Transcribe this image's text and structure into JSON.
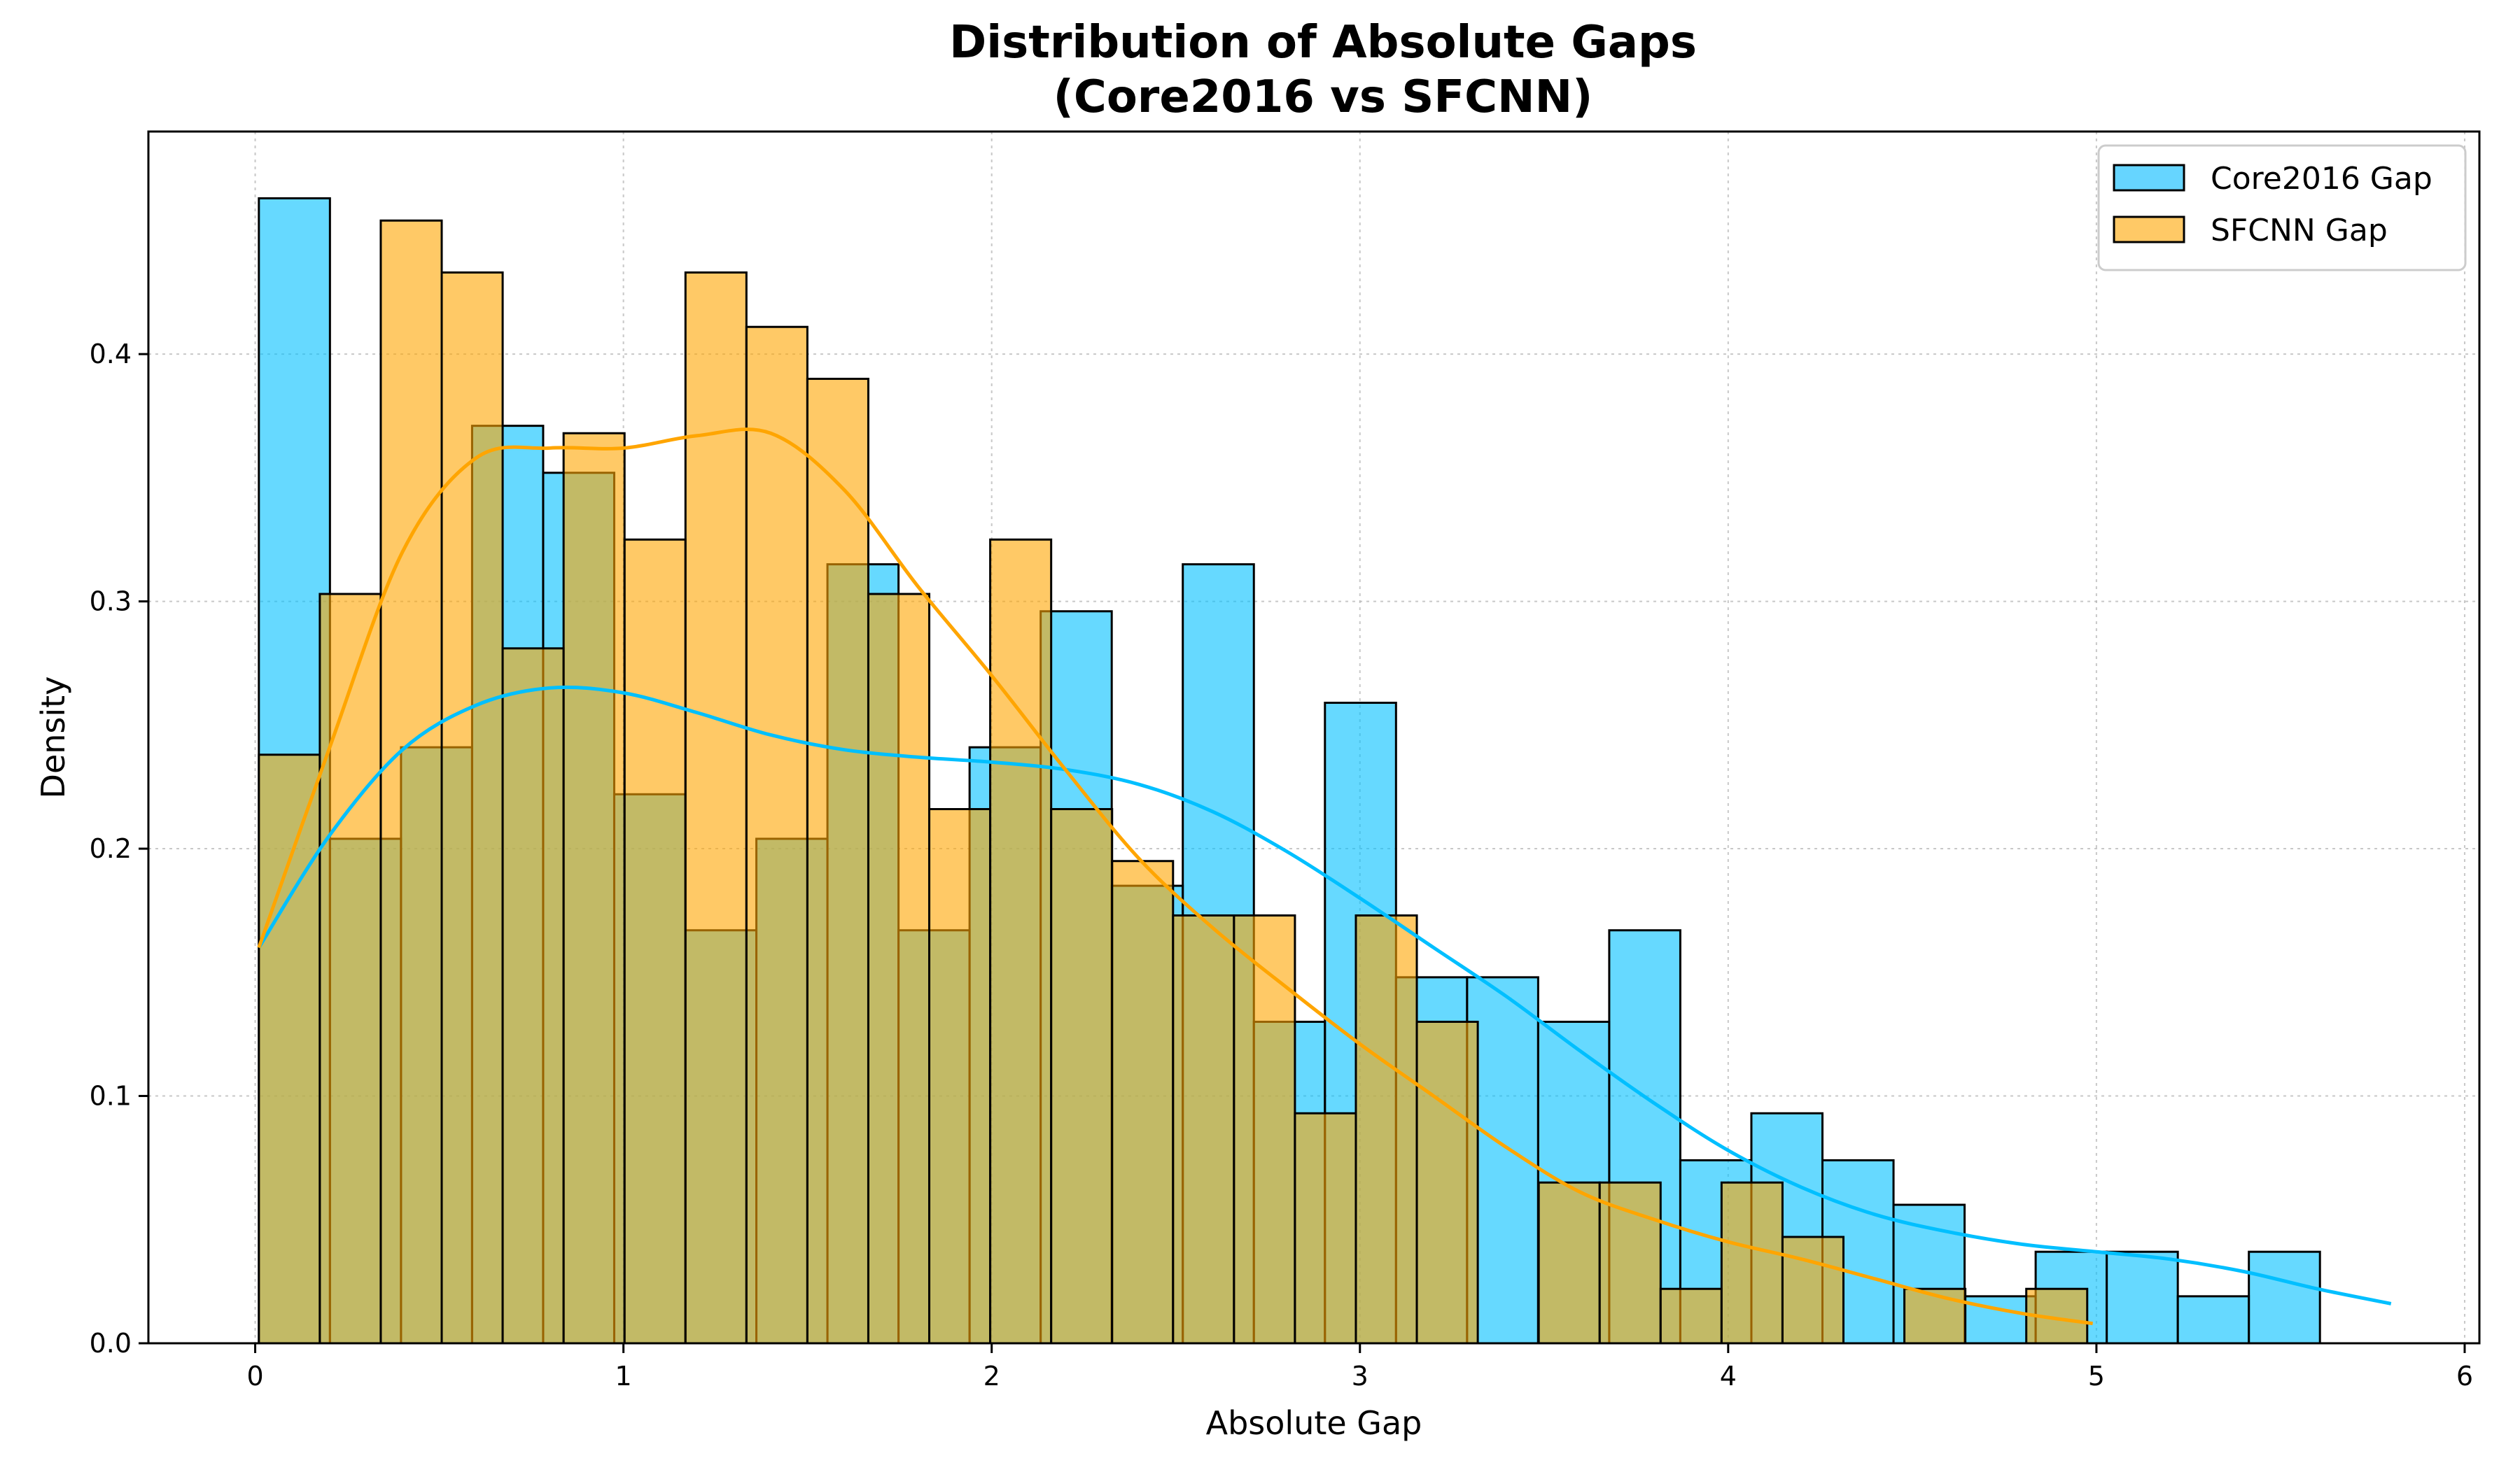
{
  "chart_data": {
    "type": "bar",
    "title_line1": "Distribution of Absolute Gaps",
    "title_line2": "(Core2016 vs SFCNN)",
    "xlabel": "Absolute Gap",
    "ylabel": "Density",
    "xlim": [
      -0.29,
      6.04
    ],
    "ylim": [
      0,
      0.49
    ],
    "xticks": [
      "0",
      "1",
      "2",
      "3",
      "4",
      "5",
      "6"
    ],
    "xtick_values": [
      0,
      1,
      2,
      3,
      4,
      5,
      6
    ],
    "yticks": [
      "0.0",
      "0.1",
      "0.2",
      "0.3",
      "0.4"
    ],
    "ytick_values": [
      0.0,
      0.1,
      0.2,
      0.3,
      0.4
    ],
    "grid": true,
    "legend_position": "top-right",
    "series": [
      {
        "name": "Core2016 Gap",
        "color": "#00BFFF",
        "bin_start": 0.01,
        "bin_width": 0.193,
        "values": [
          0.463,
          0.204,
          0.241,
          0.371,
          0.352,
          0.222,
          0.167,
          0.204,
          0.315,
          0.167,
          0.241,
          0.296,
          0.185,
          0.315,
          0.13,
          0.259,
          0.148,
          0.148,
          0.13,
          0.167,
          0.074,
          0.093,
          0.074,
          0.056,
          0.019,
          0.037,
          0.037,
          0.019,
          0.037
        ],
        "kde_x": [
          0.01,
          0.2,
          0.4,
          0.6,
          0.8,
          1.0,
          1.2,
          1.4,
          1.6,
          1.8,
          2.0,
          2.2,
          2.4,
          2.6,
          2.8,
          3.0,
          3.2,
          3.4,
          3.6,
          3.8,
          4.0,
          4.2,
          4.4,
          4.6,
          4.8,
          5.0,
          5.2,
          5.4,
          5.6,
          5.8
        ],
        "kde_y": [
          0.16,
          0.205,
          0.24,
          0.258,
          0.265,
          0.263,
          0.255,
          0.246,
          0.24,
          0.237,
          0.235,
          0.232,
          0.226,
          0.215,
          0.199,
          0.18,
          0.16,
          0.14,
          0.118,
          0.097,
          0.078,
          0.063,
          0.052,
          0.045,
          0.04,
          0.037,
          0.034,
          0.029,
          0.022,
          0.016
        ]
      },
      {
        "name": "SFCNN Gap",
        "color": "#FFA500",
        "bin_start": 0.01,
        "bin_width": 0.1655,
        "values": [
          0.238,
          0.303,
          0.454,
          0.433,
          0.281,
          0.368,
          0.325,
          0.433,
          0.411,
          0.39,
          0.303,
          0.216,
          0.325,
          0.216,
          0.195,
          0.173,
          0.173,
          0.093,
          0.173,
          0.13,
          0.0,
          0.065,
          0.065,
          0.022,
          0.065,
          0.043,
          0.0,
          0.022,
          0.0,
          0.022
        ],
        "kde_x": [
          0.01,
          0.2,
          0.4,
          0.6,
          0.8,
          1.0,
          1.2,
          1.4,
          1.6,
          1.8,
          2.0,
          2.2,
          2.4,
          2.6,
          2.8,
          3.0,
          3.2,
          3.4,
          3.6,
          3.8,
          4.0,
          4.2,
          4.4,
          4.6,
          4.8,
          4.99
        ],
        "kde_y": [
          0.16,
          0.24,
          0.32,
          0.358,
          0.362,
          0.362,
          0.367,
          0.368,
          0.345,
          0.306,
          0.27,
          0.232,
          0.196,
          0.168,
          0.144,
          0.121,
          0.1,
          0.079,
          0.061,
          0.05,
          0.041,
          0.034,
          0.026,
          0.018,
          0.012,
          0.008
        ]
      }
    ]
  },
  "legend": {
    "items": [
      {
        "label": "Core2016 Gap",
        "color": "#66D5FF"
      },
      {
        "label": "SFCNN Gap",
        "color": "#FFC966"
      }
    ]
  }
}
